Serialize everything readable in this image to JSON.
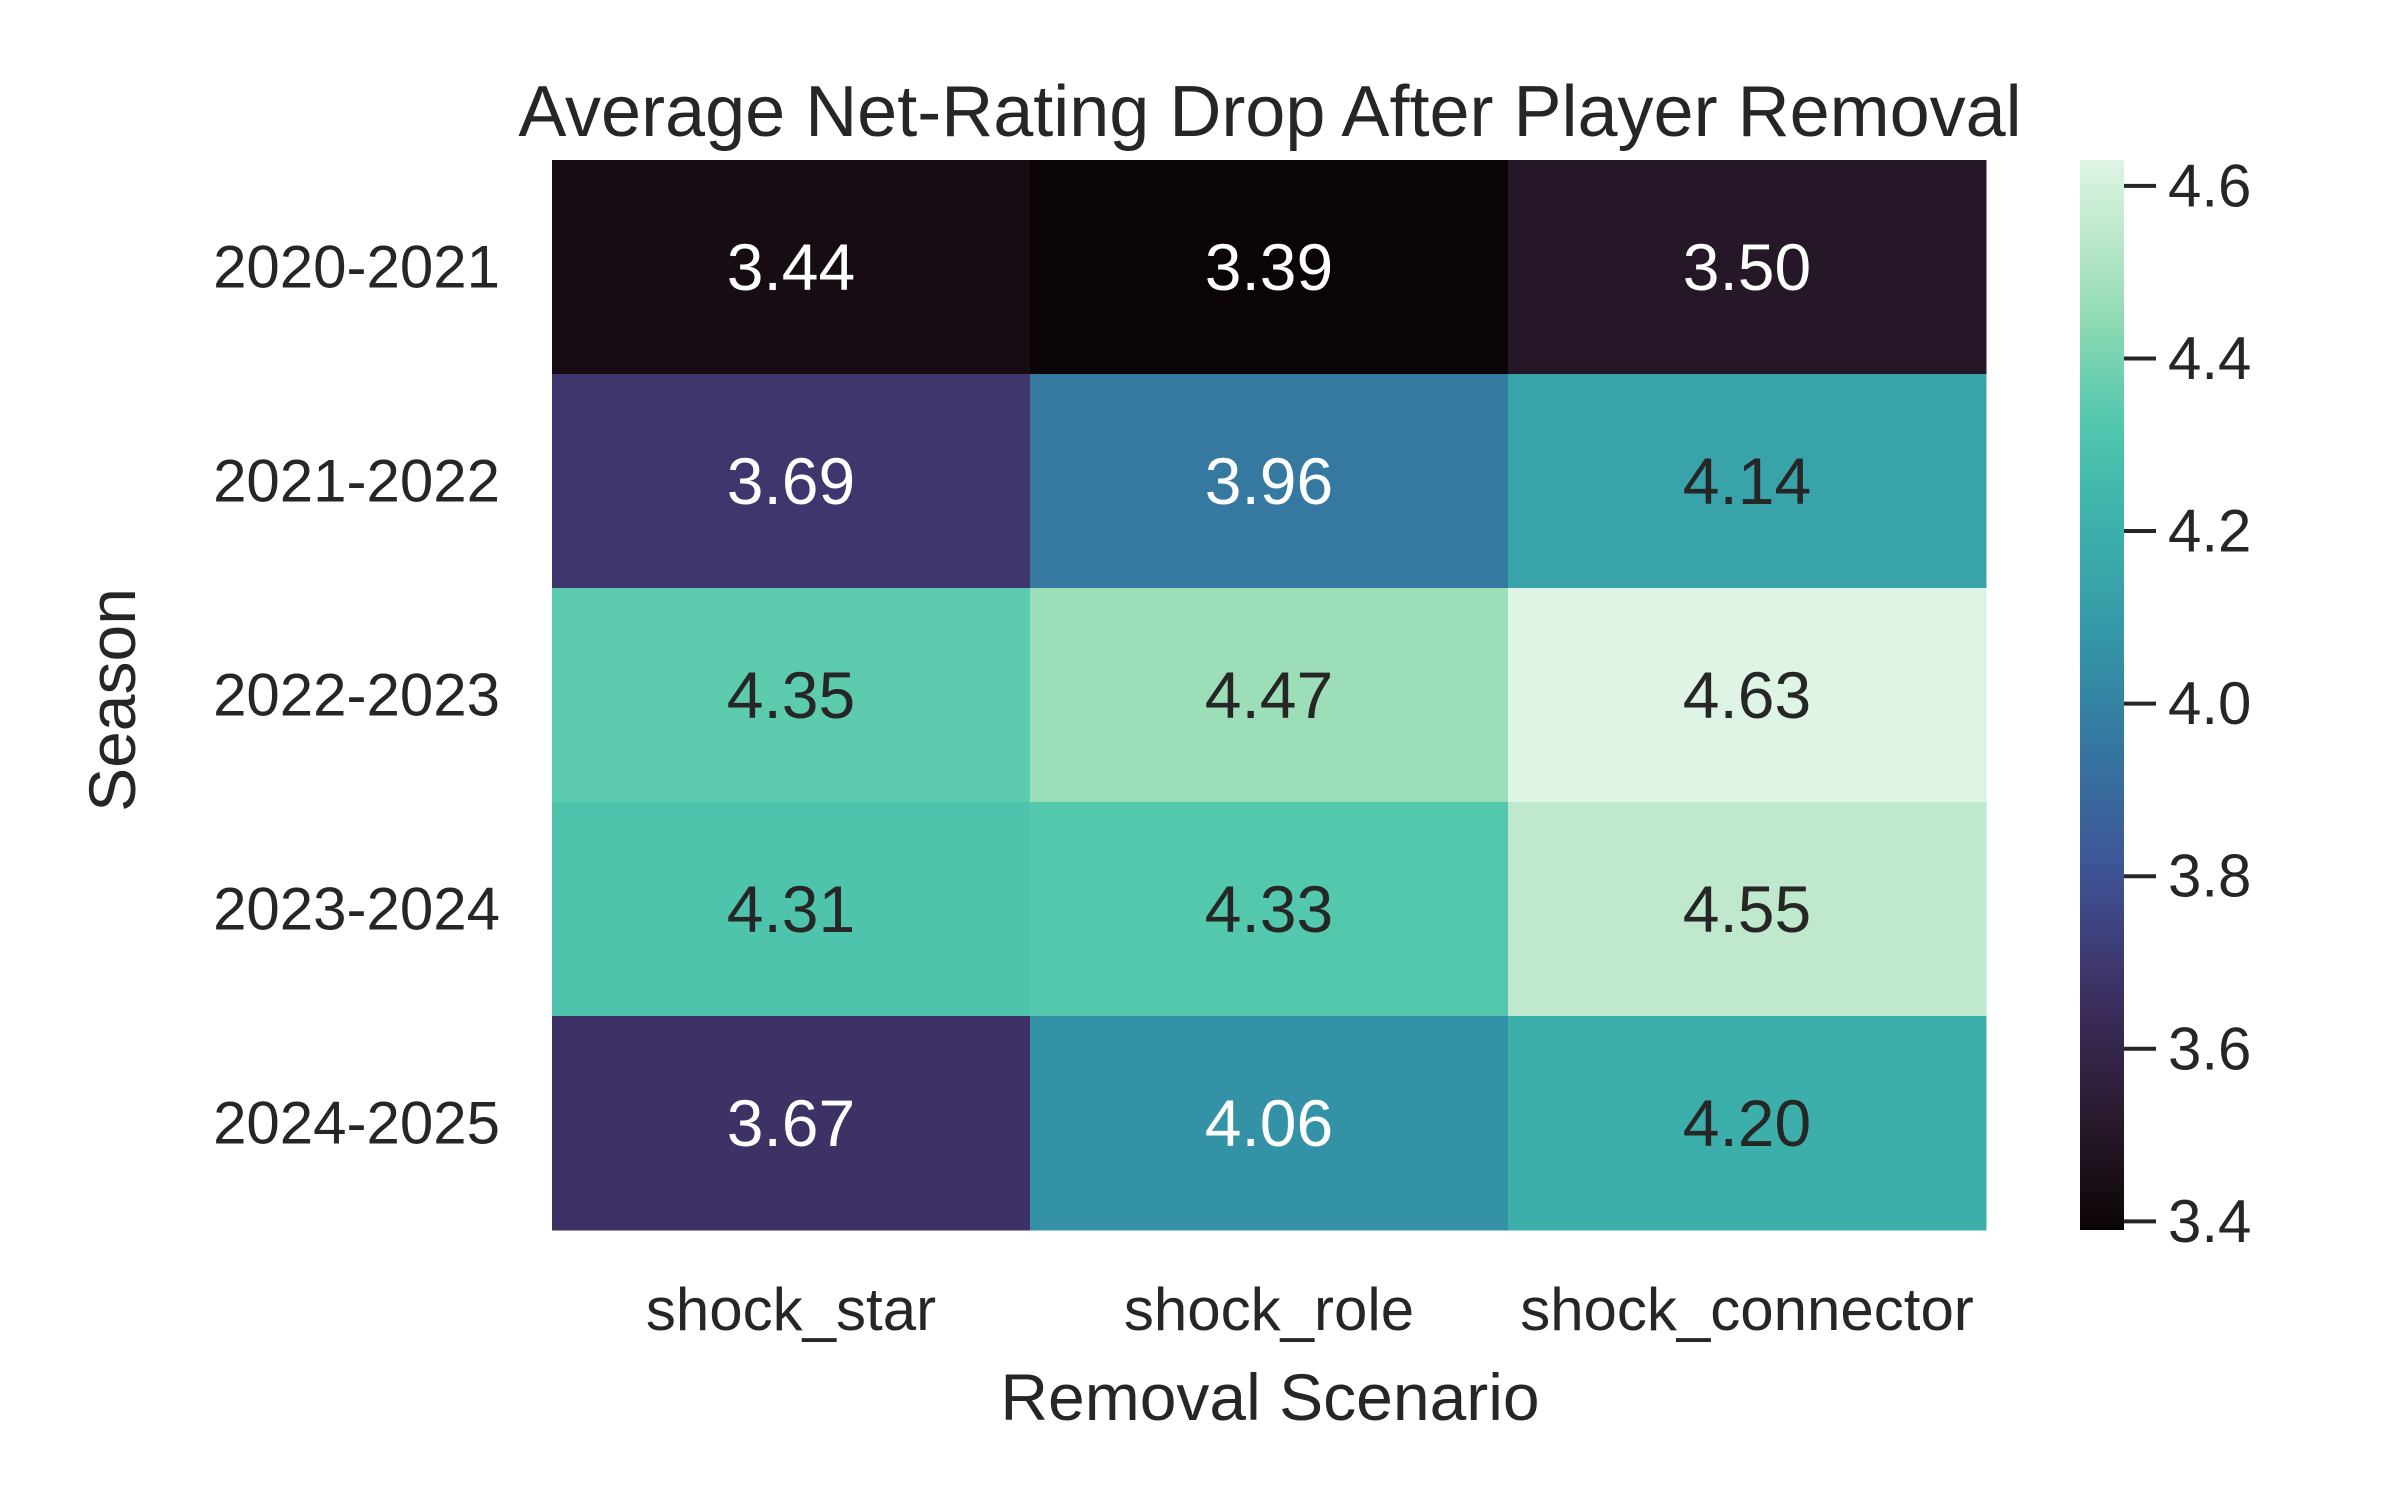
{
  "chart_data": {
    "type": "heatmap",
    "title": "Average Net-Rating Drop After Player Removal",
    "xlabel": "Removal Scenario",
    "ylabel": "Season",
    "x_categories": [
      "shock_star",
      "shock_role",
      "shock_connector"
    ],
    "y_categories": [
      "2020-2021",
      "2021-2022",
      "2022-2023",
      "2023-2024",
      "2024-2025"
    ],
    "values": [
      [
        3.44,
        3.39,
        3.5
      ],
      [
        3.69,
        3.96,
        4.14
      ],
      [
        4.35,
        4.47,
        4.63
      ],
      [
        4.31,
        4.33,
        4.55
      ],
      [
        3.67,
        4.06,
        4.2
      ]
    ],
    "cell_labels": [
      [
        "3.44",
        "3.39",
        "3.50"
      ],
      [
        "3.69",
        "3.96",
        "4.14"
      ],
      [
        "4.35",
        "4.47",
        "4.63"
      ],
      [
        "4.31",
        "4.33",
        "4.55"
      ],
      [
        "3.67",
        "4.06",
        "4.20"
      ]
    ],
    "colormap": "mako",
    "vmin": 3.39,
    "vmax": 4.63,
    "colorbar": {
      "ticks": [
        3.4,
        3.6,
        3.8,
        4.0,
        4.2,
        4.4,
        4.6
      ],
      "tick_labels": [
        "3.4",
        "3.6",
        "3.8",
        "4.0",
        "4.2",
        "4.4",
        "4.6"
      ]
    },
    "legend": "none",
    "grid": false
  }
}
